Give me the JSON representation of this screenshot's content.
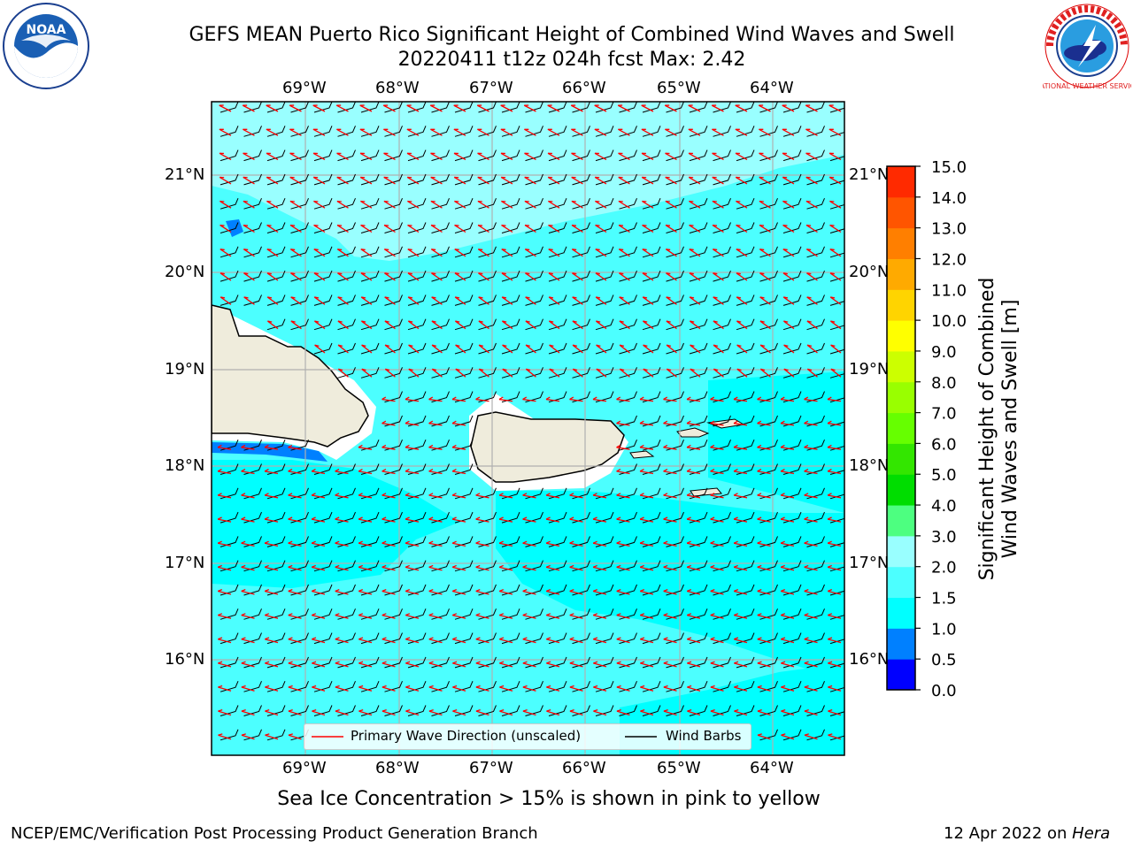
{
  "title": {
    "line1": "GEFS MEAN Puerto Rico Significant Height of Combined Wind Waves and Swell",
    "line2": "20220411 t12z 024h fcst   Max: 2.42"
  },
  "logos": {
    "noara": {
      "icon": "noaa-logo-icon",
      "text": "NOAA"
    },
    "nws": {
      "icon": "national-weather-service-logo-icon",
      "text": "NATIONAL WEATHER SERVICE"
    }
  },
  "map": {
    "lon_ticks": [
      "69°W",
      "68°W",
      "67°W",
      "66°W",
      "65°W",
      "64°W"
    ],
    "lat_ticks": [
      "21°N",
      "20°N",
      "19°N",
      "18°N",
      "17°N",
      "16°N"
    ],
    "ocean_color": "#4cffff",
    "land_color": "#efecdc",
    "legend": {
      "wave_label": "Primary Wave Direction (unscaled)",
      "barb_label": "Wind Barbs",
      "wave_color": "#ff0000",
      "barb_color": "#000000"
    }
  },
  "colorbar": {
    "label_line1": "Significant Height of Combined",
    "label_line2": "Wind Waves and Swell [m]",
    "ticks": [
      "0.0",
      "0.5",
      "1.0",
      "1.5",
      "2.0",
      "3.0",
      "4.0",
      "5.0",
      "6.0",
      "7.0",
      "8.0",
      "9.0",
      "10.0",
      "11.0",
      "12.0",
      "13.0",
      "14.0",
      "15.0"
    ],
    "colors": [
      "#0000ff",
      "#0080ff",
      "#00ffff",
      "#4cffff",
      "#99ffff",
      "#4dff80",
      "#00dd00",
      "#33e600",
      "#66ff00",
      "#99ff00",
      "#ccff00",
      "#ffff00",
      "#ffd400",
      "#ffaa00",
      "#ff7f00",
      "#ff5500",
      "#ff2a00",
      "#ff0000"
    ]
  },
  "notes": {
    "sea_ice": "Sea Ice Concentration > 15% is shown in pink to yellow",
    "producer": "NCEP/EMC/Verification Post Processing Product Generation Branch",
    "date": "12 Apr 2022 on ",
    "host": "Hera"
  }
}
